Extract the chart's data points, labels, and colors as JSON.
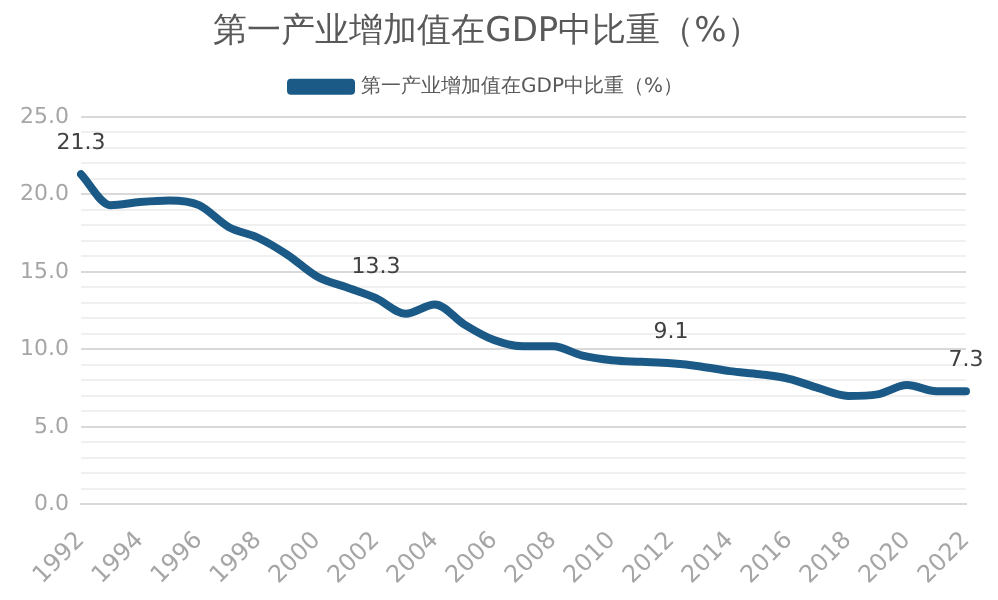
{
  "chart_data": {
    "type": "line",
    "title": "第一产业增加值在GDP中比重（%）",
    "categories": [
      "1992",
      null,
      "1994",
      null,
      "1996",
      null,
      "1998",
      null,
      "2000",
      null,
      "2002",
      null,
      "2004",
      null,
      "2006",
      null,
      "2008",
      null,
      "2010",
      null,
      "2012",
      null,
      "2014",
      null,
      "2016",
      null,
      "2018",
      null,
      "2020",
      null,
      "2022"
    ],
    "series": [
      {
        "name": "第一产业增加值在GDP中比重（%）",
        "color": "#1b5a86",
        "values": [
          21.3,
          19.3,
          19.5,
          19.6,
          19.3,
          17.9,
          17.2,
          16.1,
          14.7,
          14.0,
          13.3,
          12.3,
          12.9,
          11.6,
          10.6,
          10.2,
          10.2,
          9.6,
          9.3,
          9.2,
          9.1,
          8.9,
          8.6,
          8.4,
          8.1,
          7.5,
          7.0,
          7.1,
          7.7,
          7.3,
          7.3
        ],
        "value_labels": [
          "21.3",
          null,
          null,
          null,
          null,
          null,
          null,
          null,
          null,
          null,
          "13.3",
          null,
          null,
          null,
          null,
          null,
          null,
          null,
          null,
          null,
          "9.1",
          null,
          null,
          null,
          null,
          null,
          null,
          null,
          null,
          null,
          "7.3"
        ]
      }
    ],
    "ylim": [
      0,
      25
    ],
    "yticks": [
      {
        "value": 0,
        "label": "0.0"
      },
      {
        "value": 1,
        "label": null
      },
      {
        "value": 2,
        "label": null
      },
      {
        "value": 3,
        "label": null
      },
      {
        "value": 4,
        "label": null
      },
      {
        "value": 5,
        "label": "5.0"
      },
      {
        "value": 6,
        "label": null
      },
      {
        "value": 7,
        "label": null
      },
      {
        "value": 8,
        "label": null
      },
      {
        "value": 9,
        "label": null
      },
      {
        "value": 10,
        "label": "10.0"
      },
      {
        "value": 11,
        "label": null
      },
      {
        "value": 12,
        "label": null
      },
      {
        "value": 13,
        "label": null
      },
      {
        "value": 14,
        "label": null
      },
      {
        "value": 15,
        "label": "15.0"
      },
      {
        "value": 16,
        "label": null
      },
      {
        "value": 17,
        "label": null
      },
      {
        "value": 18,
        "label": null
      },
      {
        "value": 19,
        "label": null
      },
      {
        "value": 20,
        "label": "20.0"
      },
      {
        "value": 21,
        "label": null
      },
      {
        "value": 22,
        "label": null
      },
      {
        "value": 23,
        "label": null
      },
      {
        "value": 24,
        "label": null
      },
      {
        "value": 25,
        "label": "25.0"
      }
    ],
    "grid": "y",
    "legend": "top",
    "marker": "none",
    "line_style": "solid"
  }
}
